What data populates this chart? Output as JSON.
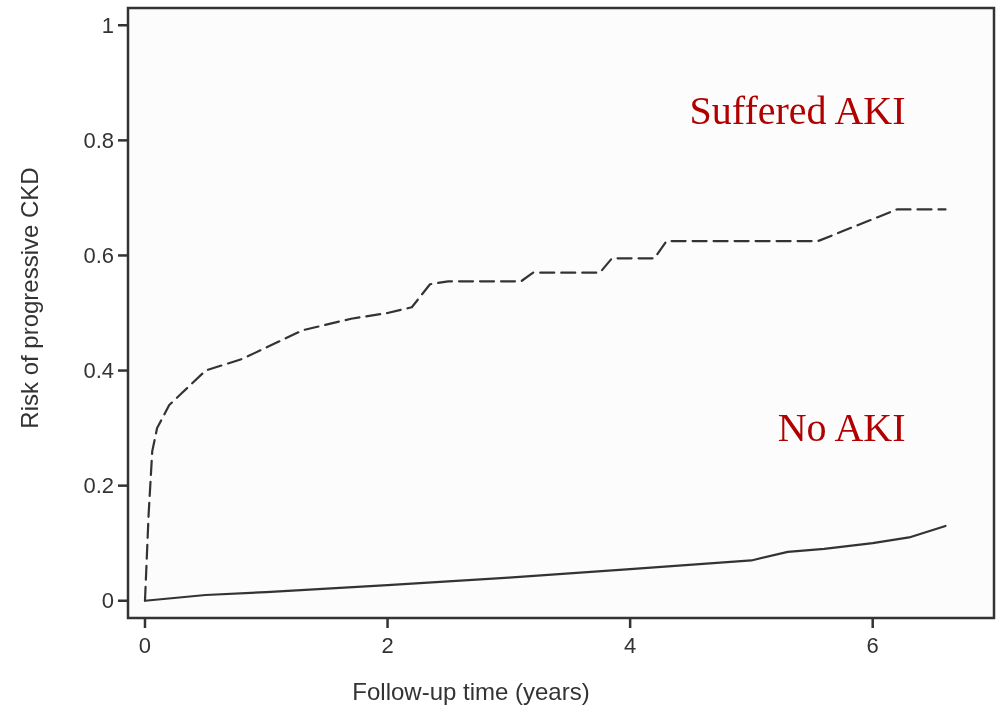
{
  "chart_data": {
    "type": "line",
    "xlabel": "Follow-up time (years)",
    "ylabel": "Risk of progressive CKD",
    "xlim": [
      -0.14,
      7.0
    ],
    "ylim": [
      -0.03,
      1.03
    ],
    "xticks": [
      0,
      2,
      4,
      6
    ],
    "yticks": [
      0,
      0.2,
      0.4,
      0.6,
      0.8,
      1
    ],
    "grid": false,
    "marker": "none",
    "series": [
      {
        "name": "Suffered AKI",
        "color": "#333333",
        "line_style": "dashed",
        "x": [
          0,
          0.03,
          0.06,
          0.1,
          0.2,
          0.3,
          0.5,
          0.8,
          1.0,
          1.3,
          1.7,
          2.0,
          2.2,
          2.35,
          2.5,
          3.1,
          3.2,
          3.75,
          3.85,
          4.2,
          4.3,
          5.55,
          6.2,
          6.6
        ],
        "values": [
          0,
          0.15,
          0.26,
          0.3,
          0.34,
          0.36,
          0.4,
          0.42,
          0.44,
          0.47,
          0.49,
          0.5,
          0.51,
          0.55,
          0.555,
          0.555,
          0.57,
          0.57,
          0.595,
          0.595,
          0.625,
          0.625,
          0.68,
          0.68
        ]
      },
      {
        "name": "No AKI",
        "color": "#333333",
        "line_style": "solid",
        "x": [
          0,
          0.5,
          1,
          2,
          3,
          4,
          5,
          5.3,
          5.6,
          6.0,
          6.3,
          6.6
        ],
        "values": [
          0,
          0.01,
          0.015,
          0.027,
          0.04,
          0.055,
          0.07,
          0.085,
          0.09,
          0.1,
          0.11,
          0.13
        ]
      }
    ]
  }
}
